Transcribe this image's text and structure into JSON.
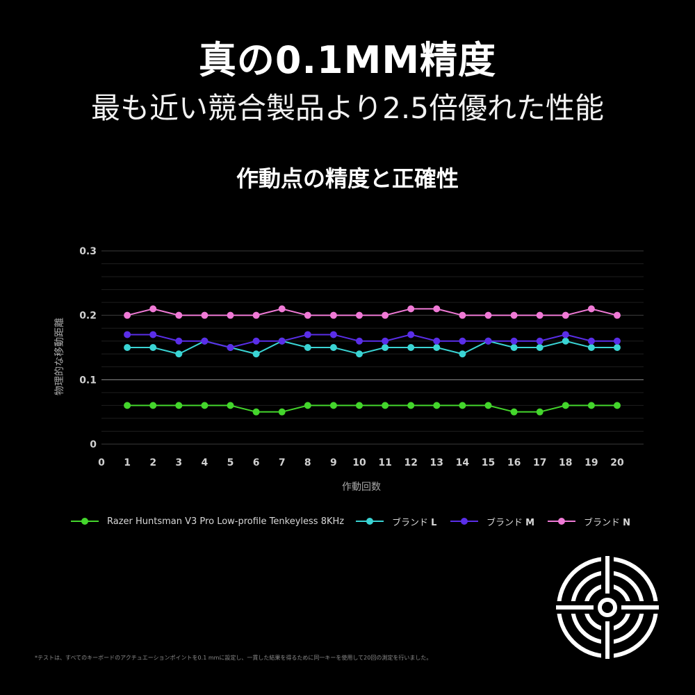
{
  "headline": "真の0.1MM精度",
  "subheadline": "最も近い競合製品より2.5倍優れた性能",
  "footnote": "*テストは、すべてのキーボードのアクチュエーションポイントを0.1 mmに設定し、一貫した結果を得るために同一キーを使用して20回の測定を行いました。",
  "icon": "crosshair-target-icon",
  "chart_data": {
    "type": "line",
    "title": "作動点の精度と正確性",
    "xlabel": "作動回数",
    "ylabel": "物理的な移動距離",
    "x": [
      1,
      2,
      3,
      4,
      5,
      6,
      7,
      8,
      9,
      10,
      11,
      12,
      13,
      14,
      15,
      16,
      17,
      18,
      19,
      20
    ],
    "xticks": [
      "0",
      "1",
      "2",
      "3",
      "4",
      "5",
      "6",
      "7",
      "8",
      "9",
      "10",
      "11",
      "12",
      "13",
      "14",
      "15",
      "16",
      "17",
      "18",
      "19",
      "20"
    ],
    "yticks": [
      "0",
      "0.1",
      "0.2",
      "0.3"
    ],
    "xlim": [
      0,
      20
    ],
    "ylim": [
      0,
      0.3
    ],
    "grid": true,
    "legend_position": "bottom",
    "series": [
      {
        "name": "Razer Huntsman V3 Pro Low-profile Tenkeyless 8KHz",
        "label_prefix": "",
        "label_suffix": "",
        "color": "#44d62c",
        "values": [
          0.06,
          0.06,
          0.06,
          0.06,
          0.06,
          0.05,
          0.05,
          0.06,
          0.06,
          0.06,
          0.06,
          0.06,
          0.06,
          0.06,
          0.06,
          0.05,
          0.05,
          0.06,
          0.06,
          0.06
        ]
      },
      {
        "name": "ブランド L",
        "label_prefix": "ブランド",
        "label_suffix": "L",
        "color": "#3ad4d4",
        "values": [
          0.15,
          0.15,
          0.14,
          0.16,
          0.15,
          0.14,
          0.16,
          0.15,
          0.15,
          0.14,
          0.15,
          0.15,
          0.15,
          0.14,
          0.16,
          0.15,
          0.15,
          0.16,
          0.15,
          0.15
        ]
      },
      {
        "name": "ブランド M",
        "label_prefix": "ブランド",
        "label_suffix": "M",
        "color": "#5a2ee8",
        "values": [
          0.17,
          0.17,
          0.16,
          0.16,
          0.15,
          0.16,
          0.16,
          0.17,
          0.17,
          0.16,
          0.16,
          0.17,
          0.16,
          0.16,
          0.16,
          0.16,
          0.16,
          0.17,
          0.16,
          0.16
        ]
      },
      {
        "name": "ブランド N",
        "label_prefix": "ブランド",
        "label_suffix": "N",
        "color": "#f07ad6",
        "values": [
          0.2,
          0.21,
          0.2,
          0.2,
          0.2,
          0.2,
          0.21,
          0.2,
          0.2,
          0.2,
          0.2,
          0.21,
          0.21,
          0.2,
          0.2,
          0.2,
          0.2,
          0.2,
          0.21,
          0.2
        ]
      }
    ]
  }
}
